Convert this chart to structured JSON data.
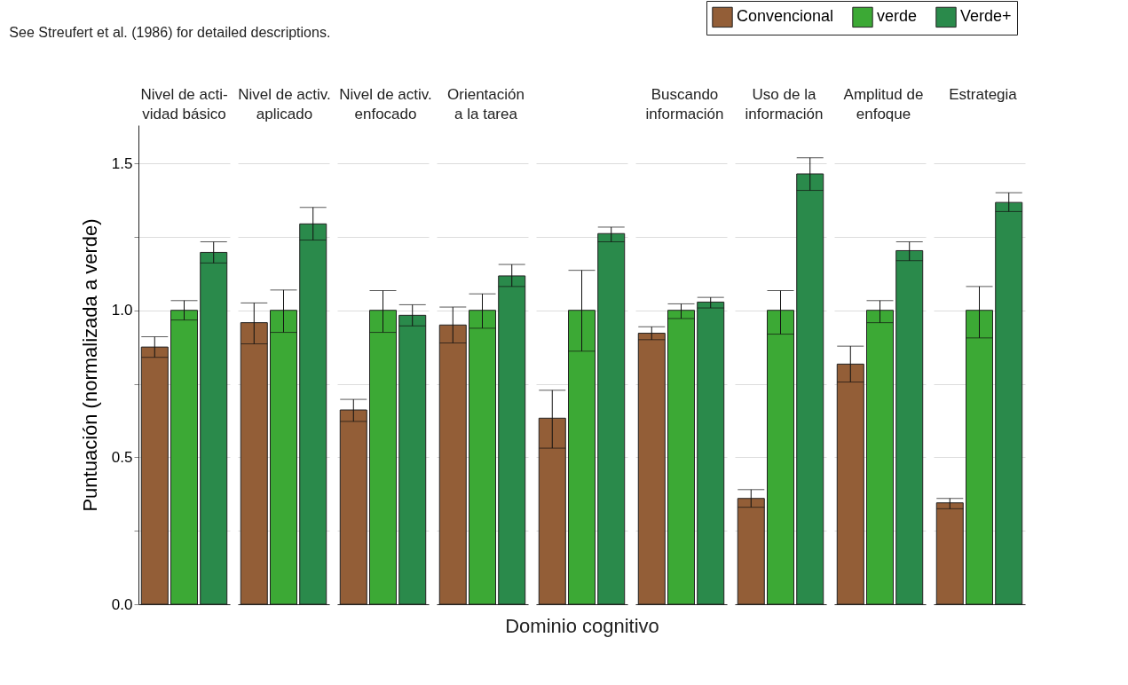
{
  "chart_data": {
    "type": "bar",
    "annotations": [
      "See Streufert et al. (1986) for detailed descriptions."
    ],
    "xlabel": "Dominio cognitivo",
    "ylabel": "Puntuación (normalizada a verde)",
    "categories": [
      "Nivel de acti-\nvidad básico",
      "Nivel de activ.\naplicado",
      "Nivel de activ.\nenfocado",
      "Orientación\na la tarea",
      null,
      "Buscando\ninformación",
      "Uso de la\ninformación",
      "Amplitud de\nenfoque",
      "Estrategia"
    ],
    "series": [
      {
        "name": "Convencional",
        "color": "#935e37",
        "values": [
          0.875,
          0.958,
          0.661,
          0.95,
          0.633,
          0.922,
          0.36,
          0.817,
          0.345
        ],
        "errors": [
          [
            0.84,
            0.91
          ],
          [
            0.886,
            1.025
          ],
          [
            0.622,
            0.697
          ],
          [
            0.889,
            1.011
          ],
          [
            0.531,
            0.728
          ],
          [
            0.9,
            0.944
          ],
          [
            0.33,
            0.39
          ],
          [
            0.756,
            0.878
          ],
          [
            0.325,
            0.36
          ]
        ]
      },
      {
        "name": "verde",
        "color": "#3ca935",
        "values": [
          1.0,
          1.0,
          1.0,
          1.0,
          1.0,
          1.0,
          1.0,
          1.0,
          1.0
        ],
        "errors": [
          [
            0.967,
            1.033
          ],
          [
            0.925,
            1.069
          ],
          [
            0.925,
            1.067
          ],
          [
            0.939,
            1.056
          ],
          [
            0.861,
            1.136
          ],
          [
            0.972,
            1.022
          ],
          [
            0.919,
            1.067
          ],
          [
            0.958,
            1.033
          ],
          [
            0.906,
            1.081
          ]
        ]
      },
      {
        "name": "Verde+",
        "color": "#2a8a4b",
        "values": [
          1.197,
          1.294,
          0.983,
          1.117,
          1.261,
          1.028,
          1.464,
          1.203,
          1.367
        ],
        "errors": [
          [
            1.161,
            1.233
          ],
          [
            1.239,
            1.35
          ],
          [
            0.947,
            1.019
          ],
          [
            1.081,
            1.156
          ],
          [
            1.233,
            1.283
          ],
          [
            1.008,
            1.044
          ],
          [
            1.408,
            1.519
          ],
          [
            1.169,
            1.233
          ],
          [
            1.336,
            1.4
          ]
        ]
      }
    ],
    "ylim": [
      0,
      1.63
    ],
    "yticks": [
      {
        "value": 0,
        "label": "0.0"
      },
      {
        "value": 0.25,
        "label": null
      },
      0.5,
      {
        "value": 0.75,
        "label": null
      },
      {
        "value": 1,
        "label": "1.0"
      },
      {
        "value": 1.25,
        "label": null
      },
      1.5
    ],
    "grid": true,
    "legend": "top right"
  }
}
